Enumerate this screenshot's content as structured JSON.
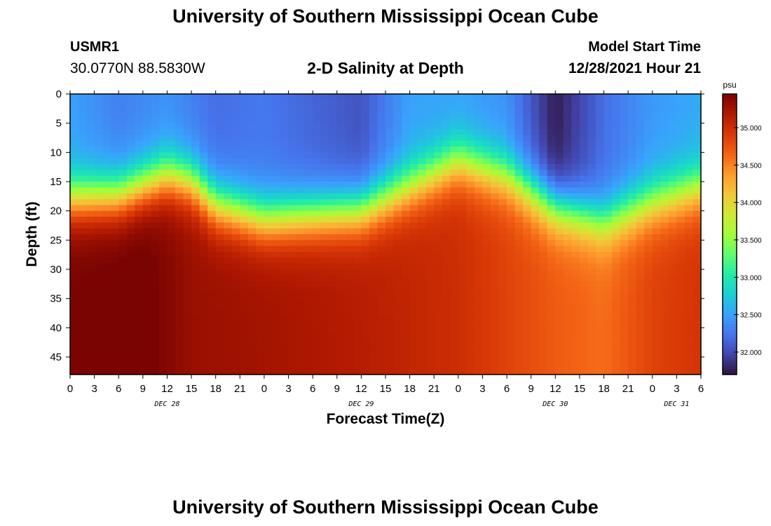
{
  "header": {
    "title": "University of Southern Mississippi Ocean Cube",
    "station_id": "USMR1",
    "station_coords": "30.0770N  88.5830W",
    "subtitle": "2-D Salinity at Depth",
    "model_label": "Model Start Time",
    "model_time": "12/28/2021 Hour 21"
  },
  "footer": {
    "title": "University of Southern Mississippi Ocean Cube"
  },
  "chart_data": {
    "type": "heatmap",
    "title": "2-D Salinity at Depth",
    "xlabel": "Forecast Time(Z)",
    "ylabel": "Depth (ft)",
    "x_hours_range": [
      0,
      78
    ],
    "x_tick_labels": [
      "0",
      "3",
      "6",
      "9",
      "12",
      "15",
      "18",
      "21",
      "0",
      "3",
      "6",
      "9",
      "12",
      "15",
      "18",
      "21",
      "0",
      "3",
      "6",
      "9",
      "12",
      "15",
      "18",
      "21",
      "0",
      "3",
      "6"
    ],
    "day_labels": [
      {
        "hour": 12,
        "label": "DEC 28"
      },
      {
        "hour": 36,
        "label": "DEC 29"
      },
      {
        "hour": 60,
        "label": "DEC 30"
      },
      {
        "hour": 75,
        "label": "DEC 31"
      }
    ],
    "ylim": [
      0,
      48
    ],
    "y_ticks": [
      0,
      5,
      10,
      15,
      20,
      25,
      30,
      35,
      40,
      45
    ],
    "colorbar": {
      "unit": "psu",
      "min": 31.7,
      "max": 35.45,
      "ticks": [
        "32.000",
        "32.500",
        "33.000",
        "33.500",
        "34.000",
        "34.500",
        "35.000"
      ],
      "colormap": [
        "#30123b",
        "#4145ab",
        "#4675ed",
        "#39a2fc",
        "#1bcfd4",
        "#24eca6",
        "#61fc6c",
        "#a4fc3b",
        "#d1e834",
        "#f3c63a",
        "#fe9b2d",
        "#f36315",
        "#d93806",
        "#b11901",
        "#7a0402"
      ]
    },
    "series": [
      {
        "name": "halocline_depth_ft",
        "x_hours": [
          0,
          6,
          12,
          15,
          18,
          24,
          36,
          42,
          48,
          54,
          60,
          66,
          72,
          78
        ],
        "values": [
          18,
          17.5,
          14,
          15,
          19,
          21.5,
          20,
          16,
          11.5,
          14,
          19.5,
          22,
          18.5,
          16
        ]
      },
      {
        "name": "surface_salinity_psu",
        "x_hours": [
          0,
          6,
          12,
          18,
          24,
          36,
          42,
          48,
          54,
          60,
          66,
          72,
          78
        ],
        "values": [
          32.5,
          32.3,
          32.4,
          32.2,
          32.25,
          32.05,
          32.5,
          32.5,
          32.4,
          31.75,
          32.2,
          32.45,
          32.55
        ]
      },
      {
        "name": "bottom_salinity_psu",
        "x_hours": [
          0,
          9,
          15,
          24,
          36,
          48,
          60,
          66,
          72,
          78
        ],
        "values": [
          35.45,
          35.5,
          35.3,
          35.25,
          35.15,
          35.0,
          34.7,
          34.6,
          34.85,
          34.95
        ]
      }
    ]
  }
}
